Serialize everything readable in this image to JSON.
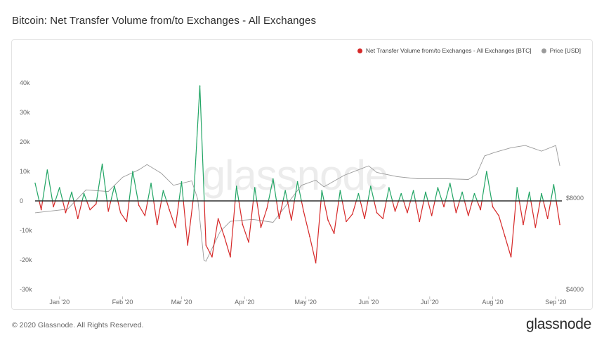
{
  "header": {
    "title": "Bitcoin: Net Transfer Volume from/to Exchanges - All Exchanges"
  },
  "footer": {
    "copyright": "© 2020 Glassnode. All Rights Reserved.",
    "brand": "glassnode"
  },
  "watermark": "glassnode",
  "colors": {
    "positive": "#22a565",
    "negative": "#d62828",
    "zero_line": "#2f2f2f",
    "price": "#9a9a9a"
  },
  "chart_data": {
    "type": "line",
    "title": "Bitcoin: Net Transfer Volume from/to Exchanges - All Exchanges",
    "grid": false,
    "legend_position": "top-right",
    "x_ticks": [
      "Jan '20",
      "Feb '20",
      "Mar '20",
      "Apr '20",
      "May '20",
      "Jun '20",
      "Jul '20",
      "Aug '20",
      "Sep '20"
    ],
    "x_range": [
      "2019-12-20",
      "2020-09-04"
    ],
    "y_left": {
      "ticks": [
        "40k",
        "30k",
        "20k",
        "10k",
        "0",
        "-10k",
        "-20k",
        "-30k"
      ],
      "range": [
        -30000,
        40000
      ]
    },
    "y_right": {
      "ticks": [
        "$8000",
        "$4000"
      ],
      "scale": "log",
      "range": [
        4000,
        14500
      ]
    },
    "series": [
      {
        "name": "Net Transfer Volume from/to Exchanges - All Exchanges [BTC]",
        "axis": "left",
        "x": [
          "2019-12-20",
          "2019-12-23",
          "2019-12-26",
          "2019-12-29",
          "2020-01-01",
          "2020-01-04",
          "2020-01-07",
          "2020-01-10",
          "2020-01-13",
          "2020-01-16",
          "2020-01-19",
          "2020-01-22",
          "2020-01-25",
          "2020-01-28",
          "2020-01-31",
          "2020-02-03",
          "2020-02-06",
          "2020-02-09",
          "2020-02-12",
          "2020-02-15",
          "2020-02-18",
          "2020-02-21",
          "2020-02-24",
          "2020-02-27",
          "2020-03-01",
          "2020-03-04",
          "2020-03-07",
          "2020-03-10",
          "2020-03-13",
          "2020-03-16",
          "2020-03-19",
          "2020-03-22",
          "2020-03-25",
          "2020-03-28",
          "2020-03-31",
          "2020-04-03",
          "2020-04-06",
          "2020-04-09",
          "2020-04-12",
          "2020-04-15",
          "2020-04-18",
          "2020-04-21",
          "2020-04-24",
          "2020-04-27",
          "2020-04-30",
          "2020-05-03",
          "2020-05-06",
          "2020-05-09",
          "2020-05-12",
          "2020-05-15",
          "2020-05-18",
          "2020-05-21",
          "2020-05-24",
          "2020-05-27",
          "2020-05-30",
          "2020-06-02",
          "2020-06-05",
          "2020-06-08",
          "2020-06-11",
          "2020-06-14",
          "2020-06-17",
          "2020-06-20",
          "2020-06-23",
          "2020-06-26",
          "2020-06-29",
          "2020-07-02",
          "2020-07-05",
          "2020-07-08",
          "2020-07-11",
          "2020-07-14",
          "2020-07-17",
          "2020-07-20",
          "2020-07-23",
          "2020-07-26",
          "2020-07-29",
          "2020-08-01",
          "2020-08-04",
          "2020-08-07",
          "2020-08-10",
          "2020-08-13",
          "2020-08-16",
          "2020-08-19",
          "2020-08-22",
          "2020-08-25",
          "2020-08-28",
          "2020-08-31",
          "2020-09-03"
        ],
        "y": [
          6000,
          -3000,
          10500,
          -2000,
          4500,
          -4000,
          3000,
          -6000,
          2500,
          -3000,
          -1000,
          12500,
          -3500,
          5000,
          -4000,
          -7000,
          10000,
          -1500,
          -5000,
          6000,
          -8000,
          3500,
          -3000,
          -9000,
          6500,
          -15000,
          2000,
          39000,
          -15000,
          -19000,
          -6000,
          -12000,
          -19000,
          5000,
          -8000,
          -14000,
          4500,
          -9000,
          -2500,
          7500,
          -6000,
          3500,
          -6500,
          6500,
          -3500,
          -12000,
          -21000,
          3500,
          -6500,
          -11000,
          3500,
          -7000,
          -4500,
          2500,
          -6000,
          5000,
          -4000,
          -6000,
          4500,
          -3500,
          2500,
          -4000,
          3500,
          -7000,
          3000,
          -5000,
          4500,
          -2000,
          6000,
          -4000,
          3000,
          -5000,
          2500,
          -3000,
          10000,
          -2000,
          -5000,
          -12000,
          -19000,
          4500,
          -8000,
          3000,
          -9000,
          2500,
          -6000,
          5500,
          -8000
        ]
      },
      {
        "name": "Price [USD]",
        "axis": "right",
        "x": [
          "2019-12-20",
          "2020-01-05",
          "2020-01-14",
          "2020-01-25",
          "2020-02-01",
          "2020-02-09",
          "2020-02-13",
          "2020-02-20",
          "2020-02-26",
          "2020-03-06",
          "2020-03-09",
          "2020-03-12",
          "2020-03-13",
          "2020-03-20",
          "2020-03-25",
          "2020-04-05",
          "2020-04-15",
          "2020-04-29",
          "2020-05-06",
          "2020-05-10",
          "2020-05-20",
          "2020-06-01",
          "2020-06-05",
          "2020-06-15",
          "2020-06-25",
          "2020-07-10",
          "2020-07-20",
          "2020-07-24",
          "2020-07-28",
          "2020-08-02",
          "2020-08-10",
          "2020-08-17",
          "2020-08-25",
          "2020-09-01",
          "2020-09-03"
        ],
        "y": [
          7150,
          7350,
          8500,
          8400,
          9350,
          9900,
          10300,
          9650,
          8800,
          9100,
          7900,
          5000,
          4950,
          6200,
          6700,
          6800,
          6650,
          8800,
          9150,
          8700,
          9500,
          10200,
          9700,
          9400,
          9250,
          9250,
          9200,
          9550,
          11000,
          11300,
          11700,
          11900,
          11400,
          11900,
          10200
        ]
      }
    ]
  }
}
